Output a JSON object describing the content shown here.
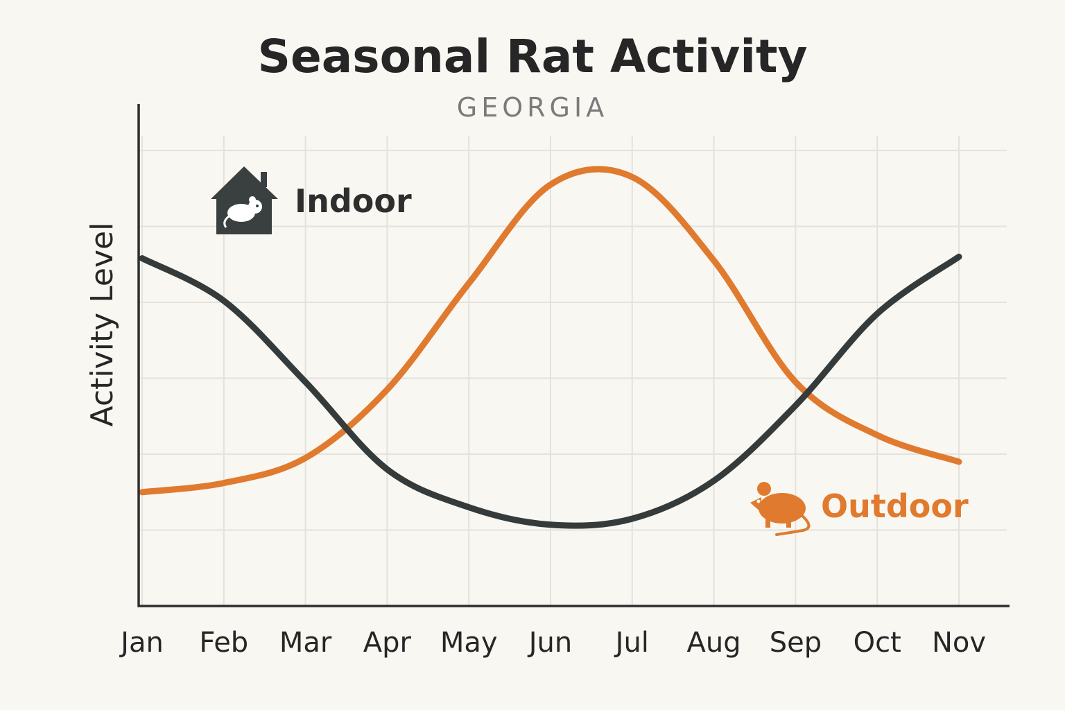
{
  "chart_data": {
    "type": "line",
    "title": "Seasonal Rat Activity",
    "subtitle": "GEORGIA",
    "xlabel": "",
    "ylabel": "Activity Level",
    "categories": [
      "Jan",
      "Feb",
      "Mar",
      "Apr",
      "May",
      "Jun",
      "Jul",
      "Aug",
      "Sep",
      "Oct",
      "Nov"
    ],
    "ylim": [
      0,
      6
    ],
    "grid": true,
    "series": [
      {
        "name": "Indoor",
        "color": "#353b3b",
        "icon": "house-rat-icon",
        "values": [
          4.58,
          4.02,
          2.95,
          1.8,
          1.3,
          1.07,
          1.15,
          1.65,
          2.64,
          3.85,
          4.6
        ]
      },
      {
        "name": "Outdoor",
        "color": "#e07a2e",
        "icon": "rat-icon",
        "values": [
          1.5,
          1.62,
          1.95,
          2.85,
          4.25,
          5.55,
          5.65,
          4.55,
          2.95,
          2.25,
          1.9
        ]
      }
    ]
  }
}
